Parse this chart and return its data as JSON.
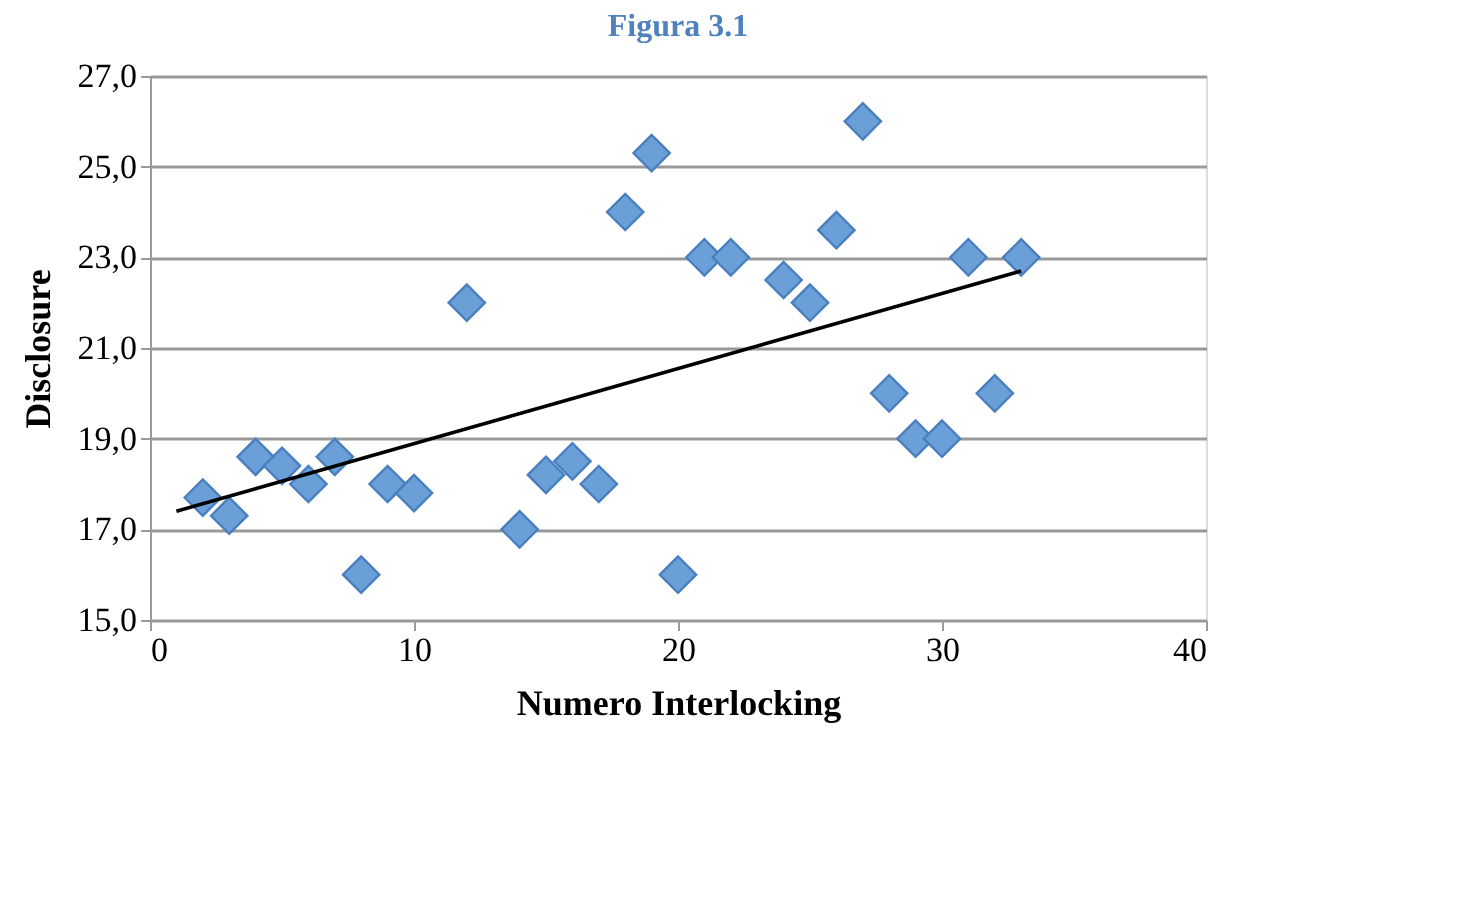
{
  "chart_data": {
    "type": "scatter",
    "title": "Figura 3.1",
    "xlabel": "Numero Interlocking",
    "ylabel": "Disclosure",
    "xlim": [
      0,
      40
    ],
    "xticks": [
      0,
      10,
      20,
      30,
      40
    ],
    "ylim": [
      15,
      27
    ],
    "yticks": [
      {
        "value": 15,
        "label": "15,0"
      },
      {
        "value": 17,
        "label": "17,0"
      },
      {
        "value": 19,
        "label": "19,0"
      },
      {
        "value": 21,
        "label": "21,0"
      },
      {
        "value": 23,
        "label": "23,0"
      },
      {
        "value": 25,
        "label": "25,0"
      },
      {
        "value": 27,
        "label": "27,0"
      }
    ],
    "grid": "y",
    "marker": "diamond",
    "series": [
      {
        "type": "scatter",
        "color": "#6a9fd8",
        "x": [
          2,
          3,
          4,
          5,
          6,
          7,
          8,
          9,
          10,
          12,
          14,
          15,
          16,
          17,
          18,
          19,
          20,
          21,
          22,
          24,
          25,
          26,
          27,
          28,
          29,
          30,
          31,
          32,
          33
        ],
        "values": [
          17.7,
          17.3,
          18.6,
          18.4,
          18.0,
          18.6,
          16.0,
          18.0,
          17.8,
          22.0,
          17.0,
          18.2,
          18.5,
          18.0,
          24.0,
          25.3,
          16.0,
          23.0,
          23.0,
          22.5,
          22.0,
          23.6,
          26.0,
          20.0,
          19.0,
          19.0,
          23.0,
          20.0,
          23.0
        ]
      },
      {
        "type": "line",
        "color": "#000000",
        "line_style": "solid",
        "marker": "none",
        "x": [
          1,
          33
        ],
        "values": [
          17.4,
          22.7
        ]
      }
    ]
  }
}
